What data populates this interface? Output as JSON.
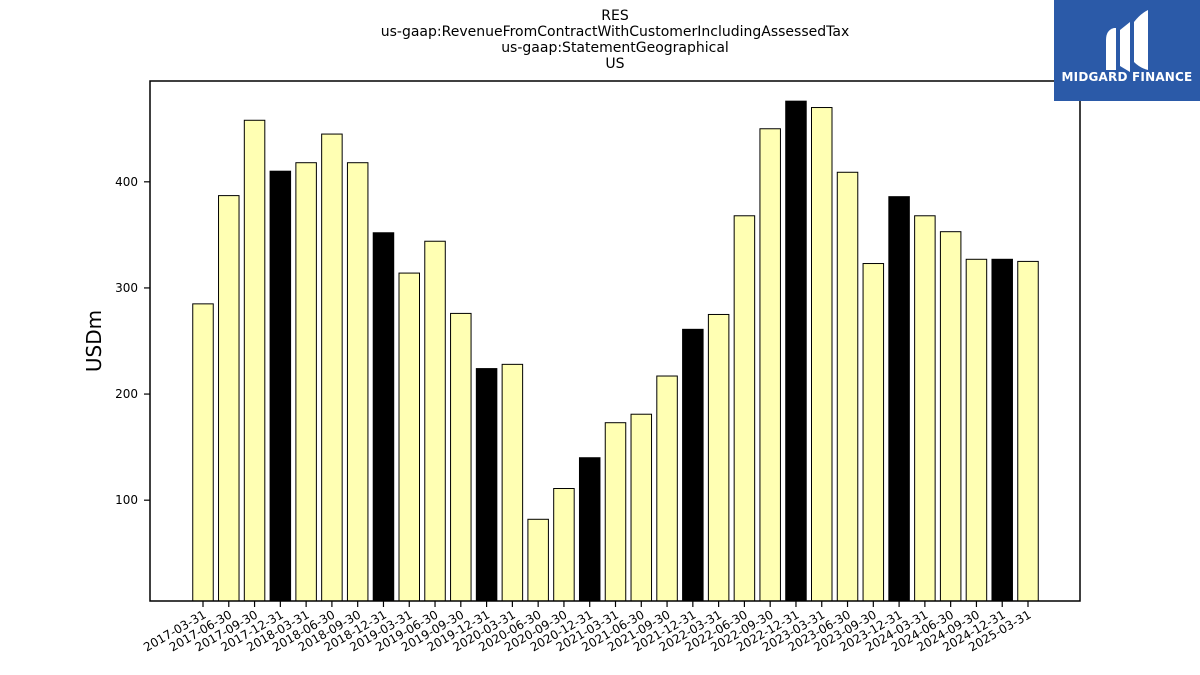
{
  "logo": {
    "text": "MIDGARD FINANCE",
    "background_color": "#2b5aa8"
  },
  "colors": {
    "bar_light": "#ffffb3",
    "bar_dark": "#000000",
    "bar_edge": "#000000"
  },
  "chart_data": {
    "type": "bar",
    "title_lines": [
      "RES",
      "us-gaap:RevenueFromContractWithCustomerIncludingAssessedTax",
      "us-gaap:StatementGeographical",
      "US"
    ],
    "xlabel": "",
    "ylabel": "USDm",
    "ylim": [
      5,
      495
    ],
    "yticks": [
      100,
      200,
      300,
      400
    ],
    "grid": false,
    "categories": [
      "2017-03-31",
      "2017-06-30",
      "2017-09-30",
      "2017-12-31",
      "2018-03-31",
      "2018-06-30",
      "2018-09-30",
      "2018-12-31",
      "2019-03-31",
      "2019-06-30",
      "2019-09-30",
      "2019-12-31",
      "2020-03-31",
      "2020-06-30",
      "2020-09-30",
      "2020-12-31",
      "2021-03-31",
      "2021-06-30",
      "2021-09-30",
      "2021-12-31",
      "2022-03-31",
      "2022-06-30",
      "2022-09-30",
      "2022-12-31",
      "2023-03-31",
      "2023-06-30",
      "2023-09-30",
      "2023-12-31",
      "2024-03-31",
      "2024-06-30",
      "2024-09-30",
      "2024-12-31",
      "2025-03-31"
    ],
    "values": [
      285,
      387,
      458,
      410,
      418,
      445,
      418,
      352,
      314,
      344,
      276,
      224,
      228,
      82,
      111,
      140,
      173,
      181,
      217,
      261,
      275,
      368,
      450,
      476,
      470,
      409,
      323,
      386,
      368,
      353,
      327,
      327,
      325
    ],
    "highlight_quarter": "12-31"
  }
}
